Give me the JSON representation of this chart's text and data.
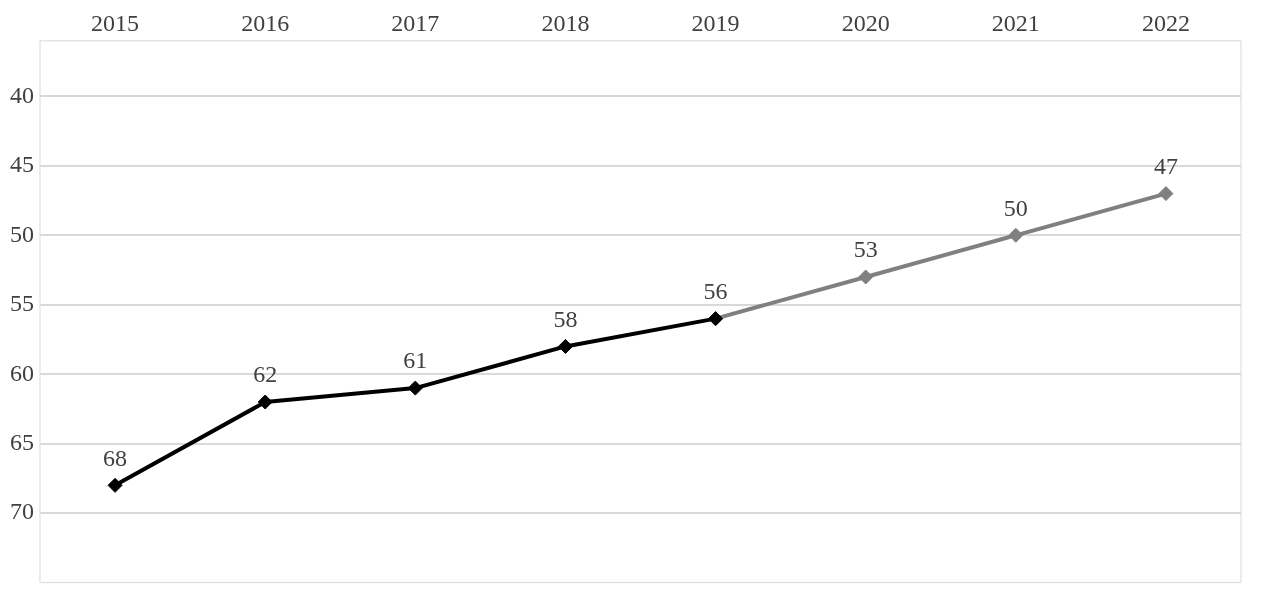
{
  "chart_data": {
    "type": "line",
    "categories": [
      "2015",
      "2016",
      "2017",
      "2018",
      "2019",
      "2020",
      "2021",
      "2022"
    ],
    "series": [
      {
        "color": "#000000",
        "values": [
          68,
          62,
          61,
          58,
          56,
          null,
          null,
          null
        ],
        "value_labels": [
          "68",
          "62",
          "61",
          "58",
          "56",
          null,
          null,
          null
        ]
      },
      {
        "color": "#808080",
        "values": [
          null,
          null,
          null,
          null,
          56,
          53,
          50,
          47
        ],
        "value_labels": [
          null,
          null,
          null,
          null,
          null,
          "53",
          "50",
          "47"
        ]
      }
    ],
    "ylim": [
      75,
      36
    ],
    "yticks": [
      40,
      45,
      50,
      55,
      60,
      65,
      70
    ],
    "grid": "y",
    "marker": "diamond",
    "line_style": "solid",
    "legend": false
  }
}
